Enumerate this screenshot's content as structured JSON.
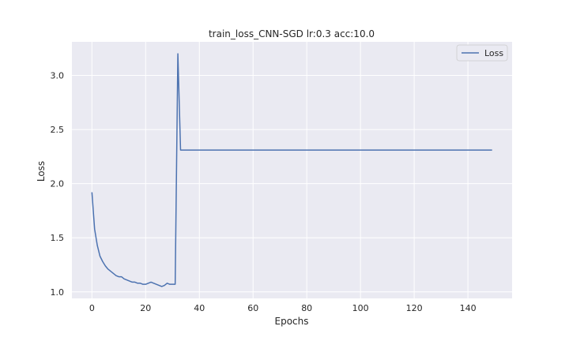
{
  "chart_data": {
    "type": "line",
    "title": "train_loss_CNN-SGD lr:0.3 acc:10.0",
    "xlabel": "Epochs",
    "ylabel": "Loss",
    "xlim": [
      -7.45,
      156.45
    ],
    "ylim": [
      0.94,
      3.31
    ],
    "xticks": [
      0,
      20,
      40,
      60,
      80,
      100,
      120,
      140
    ],
    "yticks": [
      1.0,
      1.5,
      2.0,
      2.5,
      3.0
    ],
    "grid": true,
    "background": "#eaeaf2",
    "legend_position": "top-right",
    "series": [
      {
        "name": "Loss",
        "color": "#4c72b0",
        "x": [
          0,
          1,
          2,
          3,
          4,
          5,
          6,
          7,
          8,
          9,
          10,
          11,
          12,
          13,
          14,
          15,
          16,
          17,
          18,
          19,
          20,
          21,
          22,
          23,
          24,
          25,
          26,
          27,
          28,
          29,
          30,
          31,
          32,
          33,
          149
        ],
        "y": [
          1.92,
          1.58,
          1.43,
          1.33,
          1.28,
          1.24,
          1.21,
          1.19,
          1.17,
          1.15,
          1.14,
          1.14,
          1.12,
          1.11,
          1.1,
          1.09,
          1.09,
          1.08,
          1.08,
          1.07,
          1.07,
          1.08,
          1.09,
          1.08,
          1.07,
          1.06,
          1.05,
          1.06,
          1.08,
          1.07,
          1.07,
          1.07,
          3.2,
          2.31,
          2.31
        ]
      }
    ]
  }
}
